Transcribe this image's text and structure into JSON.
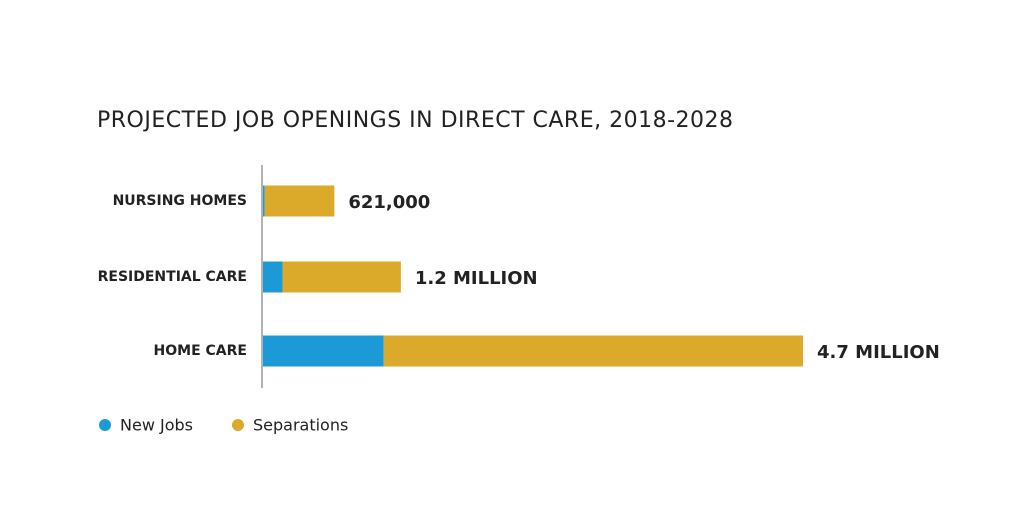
{
  "chart_data": {
    "type": "stacked-barh",
    "title": "PROJECTED JOB OPENINGS IN DIRECT CARE, 2018-2028",
    "categories": [
      "NURSING HOMES",
      "RESIDENTIAL CARE",
      "HOME CARE"
    ],
    "series": [
      {
        "name": "New Jobs",
        "color": "#1b9ad7",
        "values": [
          15000,
          170000,
          1050000
        ]
      },
      {
        "name": "Separations",
        "color": "#dcaa2b",
        "values": [
          606000,
          1030000,
          3650000
        ]
      }
    ],
    "totals": [
      621000,
      1200000,
      4700000
    ],
    "total_labels": [
      "621,000",
      "1.2 MILLION",
      "4.7 MILLION"
    ],
    "legend": "bottom-left"
  }
}
